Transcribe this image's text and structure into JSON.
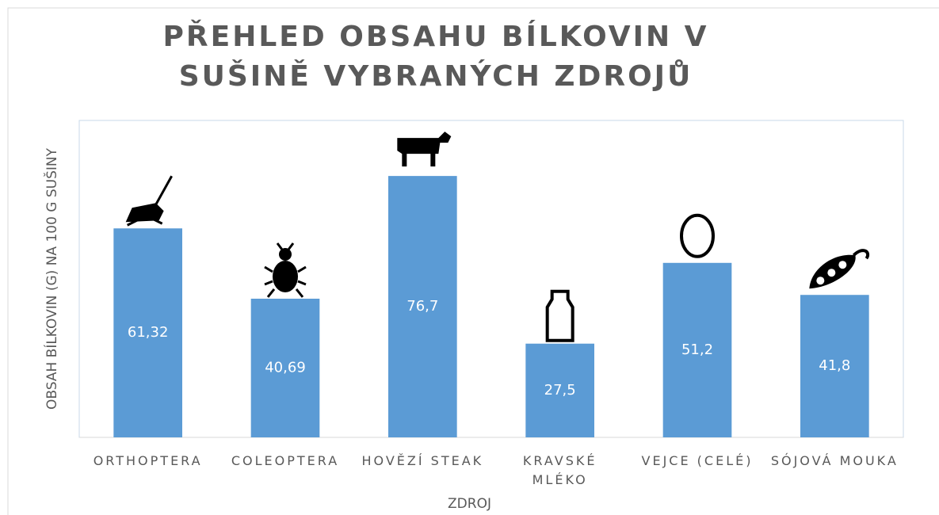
{
  "chart_data": {
    "type": "bar",
    "title": "PŘEHLED OBSAHU BÍLKOVIN V SUŠINĚ VYBRANÝCH ZDROJŮ",
    "x_label": "ZDROJ",
    "y_label": "OBSAH BÍLKOVIN (G) NA 100 G SUŠINY",
    "categories": [
      "ORTHOPTERA",
      "COLEOPTERA",
      "HOVĚZÍ STEAK",
      "KRAVSKÉ MLÉKO",
      "VEJCE (CELÉ)",
      "SÓJOVÁ MOUKA"
    ],
    "values": [
      61.32,
      40.69,
      76.7,
      27.5,
      51.2,
      41.8
    ],
    "value_labels": [
      "61,32",
      "40,69",
      "76,7",
      "27,5",
      "51,2",
      "41,8"
    ],
    "color": "#5b9bd5",
    "ylim": [
      0,
      93
    ]
  }
}
